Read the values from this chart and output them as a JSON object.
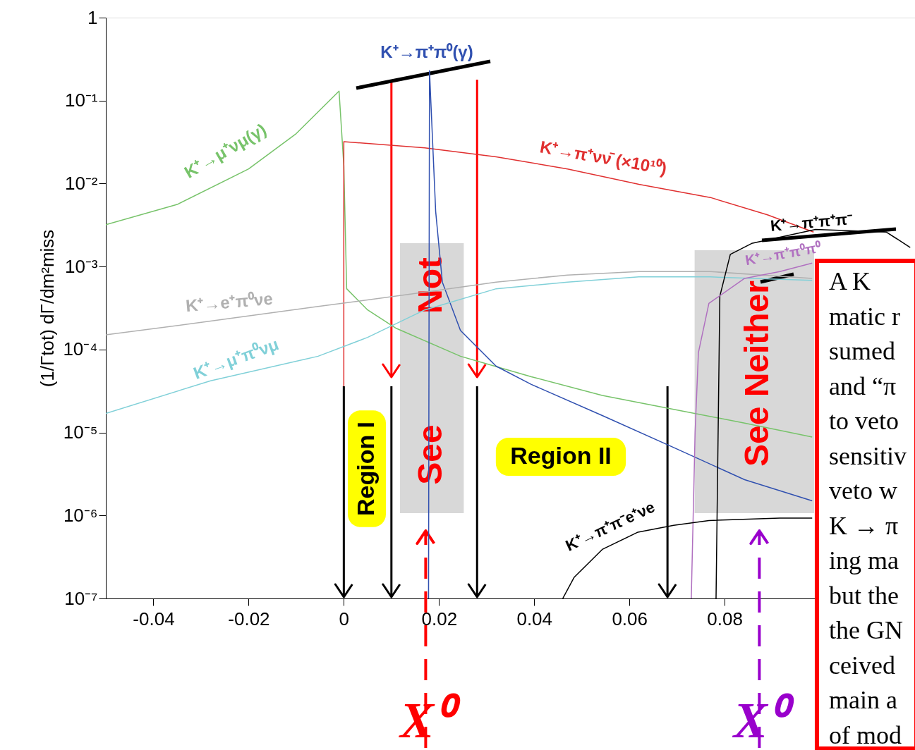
{
  "chart_data": {
    "type": "line",
    "ylabel": "(1/Γtot) dΓ/dm²miss",
    "log": "y",
    "grid": false,
    "legend": false,
    "marker": "none",
    "line_style": "solid",
    "xlim": [
      -0.05,
      0.12
    ],
    "ylim": [
      1e-07,
      1
    ],
    "xticks": [
      -0.04,
      -0.02,
      0,
      0.02,
      0.04,
      0.06,
      0.08
    ],
    "yticks": [
      {
        "value": 1e-07,
        "label": "10⁻⁷"
      },
      {
        "value": 1e-06,
        "label": "10⁻⁶"
      },
      {
        "value": 1e-05,
        "label": "10⁻⁵"
      },
      {
        "value": 0.0001,
        "label": "10⁻⁴"
      },
      {
        "value": 0.001,
        "label": "10⁻³"
      },
      {
        "value": 0.01,
        "label": "10⁻²"
      },
      {
        "value": 0.1,
        "label": "10⁻¹"
      },
      1
    ],
    "series": [
      {
        "name": "K⁺→μ⁺νμ(γ)",
        "color": "#77c36a",
        "x": [
          -0.05,
          -0.035,
          -0.02,
          -0.01,
          -0.001,
          0,
          0.0006,
          0.005,
          0.011,
          0.0245,
          0.0394,
          0.0543,
          0.0693,
          0.0842,
          0.0984
        ],
        "values": [
          0.0032,
          0.0056,
          0.015,
          0.04,
          0.13,
          0.0165,
          0.00054,
          0.0003,
          0.00018,
          8.3e-05,
          4.7e-05,
          2.8e-05,
          1.9e-05,
          1.3e-05,
          8.8e-06
        ]
      },
      {
        "name": "K⁺→π⁺νν̄ (×10¹⁰)",
        "color": "#e03030",
        "x": [
          0,
          0,
          0.017,
          0.032,
          0.047,
          0.062,
          0.077,
          0.089,
          0.0987
        ],
        "values": [
          3.6e-05,
          0.032,
          0.027,
          0.021,
          0.015,
          0.0098,
          0.0068,
          0.0042,
          0.0026
        ]
      },
      {
        "name": "K⁺→π⁺π⁰(γ)",
        "color": "#3050b0",
        "x": [
          0.0178,
          0.018,
          0.0193,
          0.0207,
          0.0245,
          0.032,
          0.0394,
          0.0543,
          0.0693,
          0.0842,
          0.0984
        ],
        "values": [
          1e-07,
          0.23,
          0.0046,
          0.00065,
          0.00017,
          6.3e-05,
          3.8e-05,
          1.6e-05,
          6.6e-06,
          2.7e-06,
          1.5e-06
        ]
      },
      {
        "name": "K⁺→e⁺π⁰νe",
        "color": "#b0b0b0",
        "x": [
          -0.05,
          -0.028,
          -0.0054,
          0.017,
          0.032,
          0.047,
          0.062,
          0.077,
          0.0984
        ],
        "values": [
          0.00015,
          0.00022,
          0.00033,
          0.00049,
          0.00065,
          0.00079,
          0.00087,
          0.00087,
          0.00072
        ]
      },
      {
        "name": "K⁺→μ⁺π⁰νμ",
        "color": "#80d0d8",
        "x": [
          -0.05,
          -0.028,
          -0.0054,
          0.005,
          0.017,
          0.032,
          0.047,
          0.062,
          0.077,
          0.0984
        ],
        "values": [
          1.7e-05,
          4.2e-05,
          8.3e-05,
          0.00014,
          0.0003,
          0.00054,
          0.00065,
          0.00075,
          0.00075,
          0.00068
        ]
      },
      {
        "name": "K⁺→π⁺π⁺π⁻",
        "color": "#000000",
        "x": [
          0.0782,
          0.079,
          0.0812,
          0.0857,
          0.0991,
          0.114,
          0.119
        ],
        "values": [
          1e-07,
          0.00044,
          0.0014,
          0.0019,
          0.0028,
          0.0026,
          0.0017
        ]
      },
      {
        "name": "K⁺→π⁺π⁰π⁰",
        "color": "#b070c0",
        "x": [
          0.073,
          0.0738,
          0.0745,
          0.0767,
          0.0842,
          0.0916,
          0.0984
        ],
        "values": [
          1e-07,
          1e-05,
          9.2e-05,
          0.00036,
          0.00072,
          0.00087,
          0.0011
        ]
      },
      {
        "name": "K⁺→π⁺π⁻e⁺νe",
        "color": "#000000",
        "x": [
          0.046,
          0.0484,
          0.0543,
          0.0618,
          0.0693,
          0.0767,
          0.0916,
          0.0984
        ],
        "values": [
          1e-07,
          1.8e-07,
          3.9e-07,
          6.3e-07,
          7.6e-07,
          8.7e-07,
          9.3e-07,
          9.3e-07
        ]
      }
    ],
    "bands": [
      {
        "axis": "x",
        "from": 0.0118,
        "to": 0.0252,
        "color": "#d8d8d8"
      },
      {
        "axis": "x",
        "from": 0.0737,
        "to": 0.0988,
        "color": "#d8d8d8"
      }
    ],
    "ref_lines": [
      {
        "axis": "x",
        "value": 0,
        "color": "#000000"
      },
      {
        "axis": "x",
        "value": 0.01,
        "color": "#000000"
      },
      {
        "axis": "x",
        "value": 0.028,
        "color": "#000000"
      },
      {
        "axis": "x",
        "value": 0.068,
        "color": "#000000"
      },
      {
        "axis": "x",
        "value": 0.01,
        "color": "#ff0000"
      },
      {
        "axis": "x",
        "value": 0.028,
        "color": "#ff0000"
      },
      {
        "axis": "x",
        "value": 0.0172,
        "color": "#ff0000",
        "line_style": "dashed",
        "label": "X⁰"
      },
      {
        "axis": "x",
        "value": 0.0873,
        "color": "#9900cc",
        "line_style": "dashed",
        "label": "X⁰"
      }
    ],
    "annotations": [
      "Region I",
      "Region II",
      "See",
      "Not",
      "See Neither",
      "A K",
      "matic r",
      "sumed",
      "and “π",
      "to veto",
      "sensitiv",
      "veto w",
      "K → π",
      "ing ma",
      "but the",
      "the GN",
      "ceived",
      "main a",
      "of mod"
    ]
  }
}
